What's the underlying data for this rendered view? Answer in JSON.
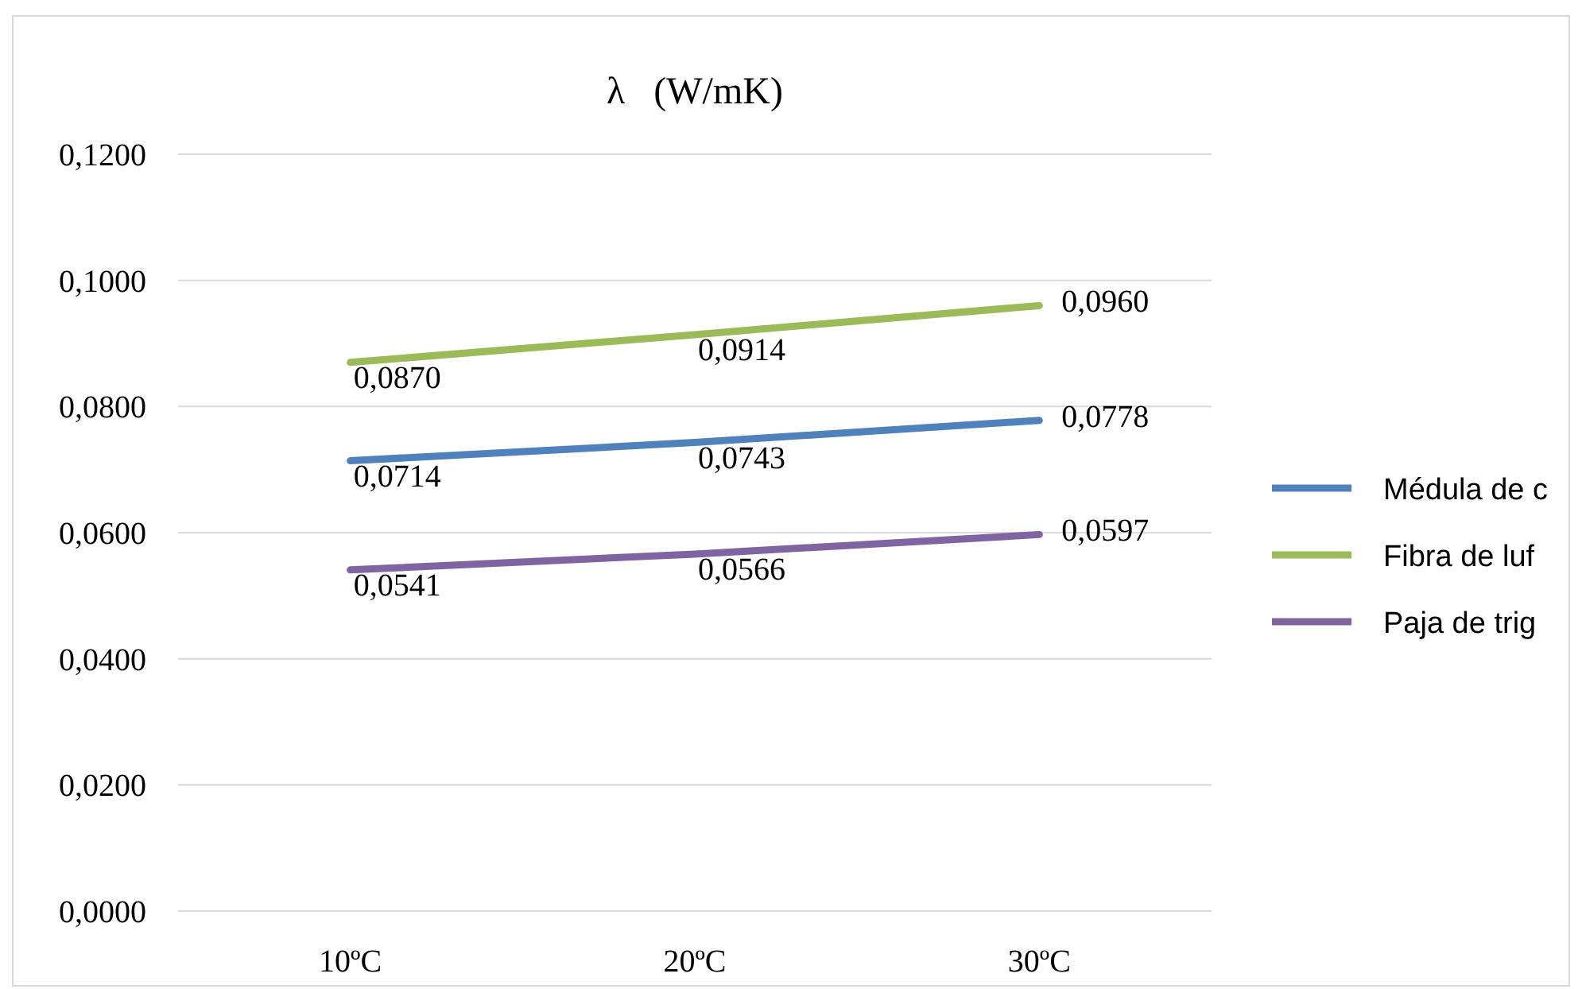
{
  "chart_data": {
    "type": "line",
    "title": "λ   (W/mK)",
    "categories": [
      "10ºC",
      "20ºC",
      "30ºC"
    ],
    "series": [
      {
        "name": "Médula de c",
        "color": "#4f81bd",
        "values": [
          0.0714,
          0.0743,
          0.0778
        ],
        "value_labels": [
          "0,0714",
          "0,0743",
          "0,0778"
        ]
      },
      {
        "name": "Fibra de luf",
        "color": "#9bbb59",
        "values": [
          0.087,
          0.0914,
          0.096
        ],
        "value_labels": [
          "0,0870",
          "0,0914",
          "0,0960"
        ]
      },
      {
        "name": "Paja de trig",
        "color": "#8064a2",
        "values": [
          0.0541,
          0.0566,
          0.0597
        ],
        "value_labels": [
          "0,0541",
          "0,0566",
          "0,0597"
        ]
      }
    ],
    "ylim": [
      0,
      0.12
    ],
    "yticks": [
      {
        "value": 0,
        "label": "0,0000"
      },
      {
        "value": 0.02,
        "label": "0,0200"
      },
      {
        "value": 0.04,
        "label": "0,0400"
      },
      {
        "value": 0.06,
        "label": "0,0600"
      },
      {
        "value": 0.08,
        "label": "0,0800"
      },
      {
        "value": 0.1,
        "label": "0,1000"
      },
      {
        "value": 0.12,
        "label": "0,1200"
      }
    ],
    "grid": "y",
    "legend": "right",
    "marker": "none",
    "line_style": "solid"
  }
}
